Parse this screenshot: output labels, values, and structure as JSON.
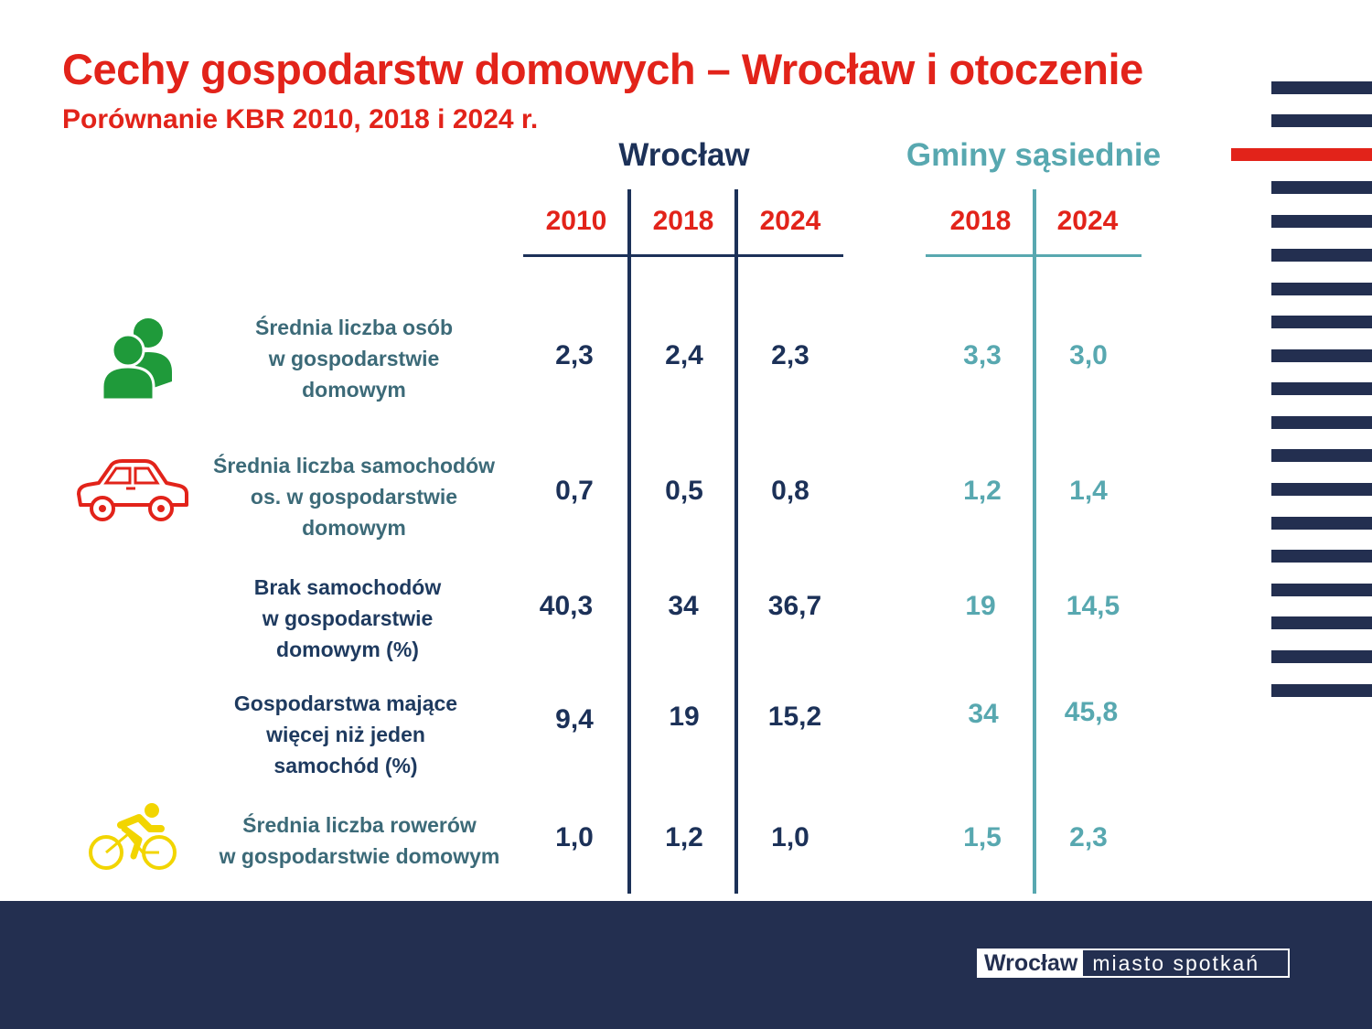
{
  "title": "Cechy gospodarstw domowych – Wrocław i otoczenie",
  "subtitle": "Porównanie KBR 2010, 2018 i 2024 r.",
  "groups": {
    "wroclaw": "Wrocław",
    "gminy": "Gminy sąsiednie"
  },
  "years": {
    "wroclaw": [
      "2010",
      "2018",
      "2024"
    ],
    "gminy": [
      "2018",
      "2024"
    ]
  },
  "rows": [
    {
      "icon": "people-icon",
      "label": [
        "Średnia liczba osób",
        "w gospodarstwie",
        "domowym"
      ],
      "wroclaw": [
        "2,3",
        "2,4",
        "2,3"
      ],
      "gminy": [
        "3,3",
        "3,0"
      ]
    },
    {
      "icon": "car-icon",
      "label": [
        "Średnia liczba samochodów",
        "os. w gospodarstwie",
        "domowym"
      ],
      "wroclaw": [
        "0,7",
        "0,5",
        "0,8"
      ],
      "gminy": [
        "1,2",
        "1,4"
      ]
    },
    {
      "icon": "",
      "label": [
        "Brak samochodów",
        "w gospodarstwie",
        "domowym (%)"
      ],
      "wroclaw": [
        "40,3",
        "34",
        "36,7"
      ],
      "gminy": [
        "19",
        "14,5"
      ]
    },
    {
      "icon": "",
      "label": [
        "Gospodarstwa mające",
        "więcej niż jeden",
        "samochód (%)"
      ],
      "wroclaw": [
        "9,4",
        "19",
        "15,2"
      ],
      "gminy": [
        "34",
        "45,8"
      ]
    },
    {
      "icon": "cyclist-icon",
      "label": [
        "Średnia liczba rowerów",
        "w gospodarstwie domowym"
      ],
      "wroclaw": [
        "1,0",
        "1,2",
        "1,0"
      ],
      "gminy": [
        "1,5",
        "2,3"
      ]
    }
  ],
  "footer": {
    "logo_left": "Wrocław",
    "logo_right": "miasto spotkań"
  },
  "colors": {
    "red": "#e2231a",
    "navy": "#232f50",
    "teal": "#58a8b0",
    "green": "#1f9a3a",
    "yellow": "#f2d500"
  }
}
